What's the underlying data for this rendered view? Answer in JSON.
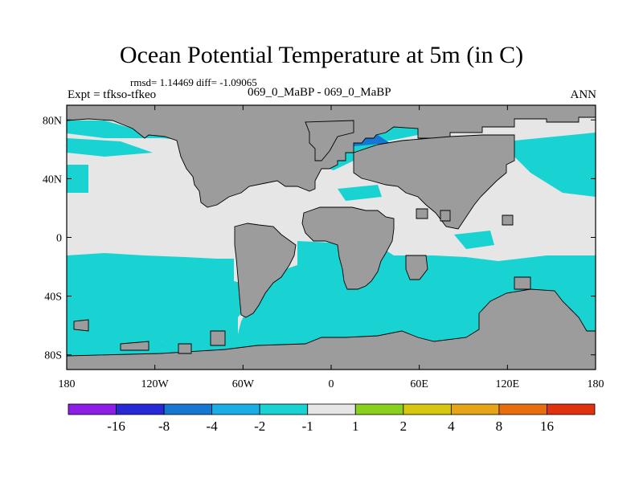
{
  "title": "Ocean Potential Temperature at 5m (in C)",
  "stats_line": "rmsd= 1.14469 diff= -1.09065",
  "experiment": "Expt = tfkso-tfkeo",
  "cases": "069_0_MaBP - 069_0_MaBP",
  "season": "ANN",
  "map": {
    "lon_range": [
      -180,
      180
    ],
    "lat_range": [
      -90,
      90
    ],
    "lon_ticks": [
      {
        "value": -180,
        "label": "180"
      },
      {
        "value": -120,
        "label": "120W"
      },
      {
        "value": -60,
        "label": "60W"
      },
      {
        "value": 0,
        "label": "0"
      },
      {
        "value": 60,
        "label": "60E"
      },
      {
        "value": 120,
        "label": "120E"
      },
      {
        "value": 180,
        "label": "180"
      }
    ],
    "lat_ticks": [
      {
        "value": 80,
        "label": "80N"
      },
      {
        "value": 40,
        "label": "40N"
      },
      {
        "value": 0,
        "label": "0"
      },
      {
        "value": -40,
        "label": "40S"
      },
      {
        "value": -80,
        "label": "80S"
      }
    ],
    "colors": {
      "land": "#9c9c9c",
      "near_zero": "#e6e6e6",
      "cool_1": "#19d3d3",
      "cool_2": "#1aaee6",
      "cool_3": "#1478d2"
    }
  },
  "colorbar": {
    "bins": [
      {
        "color": "#8c1ee6"
      },
      {
        "color": "#2828d7"
      },
      {
        "color": "#1478d2"
      },
      {
        "color": "#1aaee6"
      },
      {
        "color": "#19d3d3"
      },
      {
        "color": "#e6e6e6"
      },
      {
        "color": "#8ad11e"
      },
      {
        "color": "#d6c80f"
      },
      {
        "color": "#e6a519"
      },
      {
        "color": "#e66e0f"
      },
      {
        "color": "#e1320f"
      }
    ],
    "labels": [
      "-16",
      "-8",
      "-4",
      "-2",
      "-1",
      "1",
      "2",
      "4",
      "8",
      "16"
    ]
  }
}
